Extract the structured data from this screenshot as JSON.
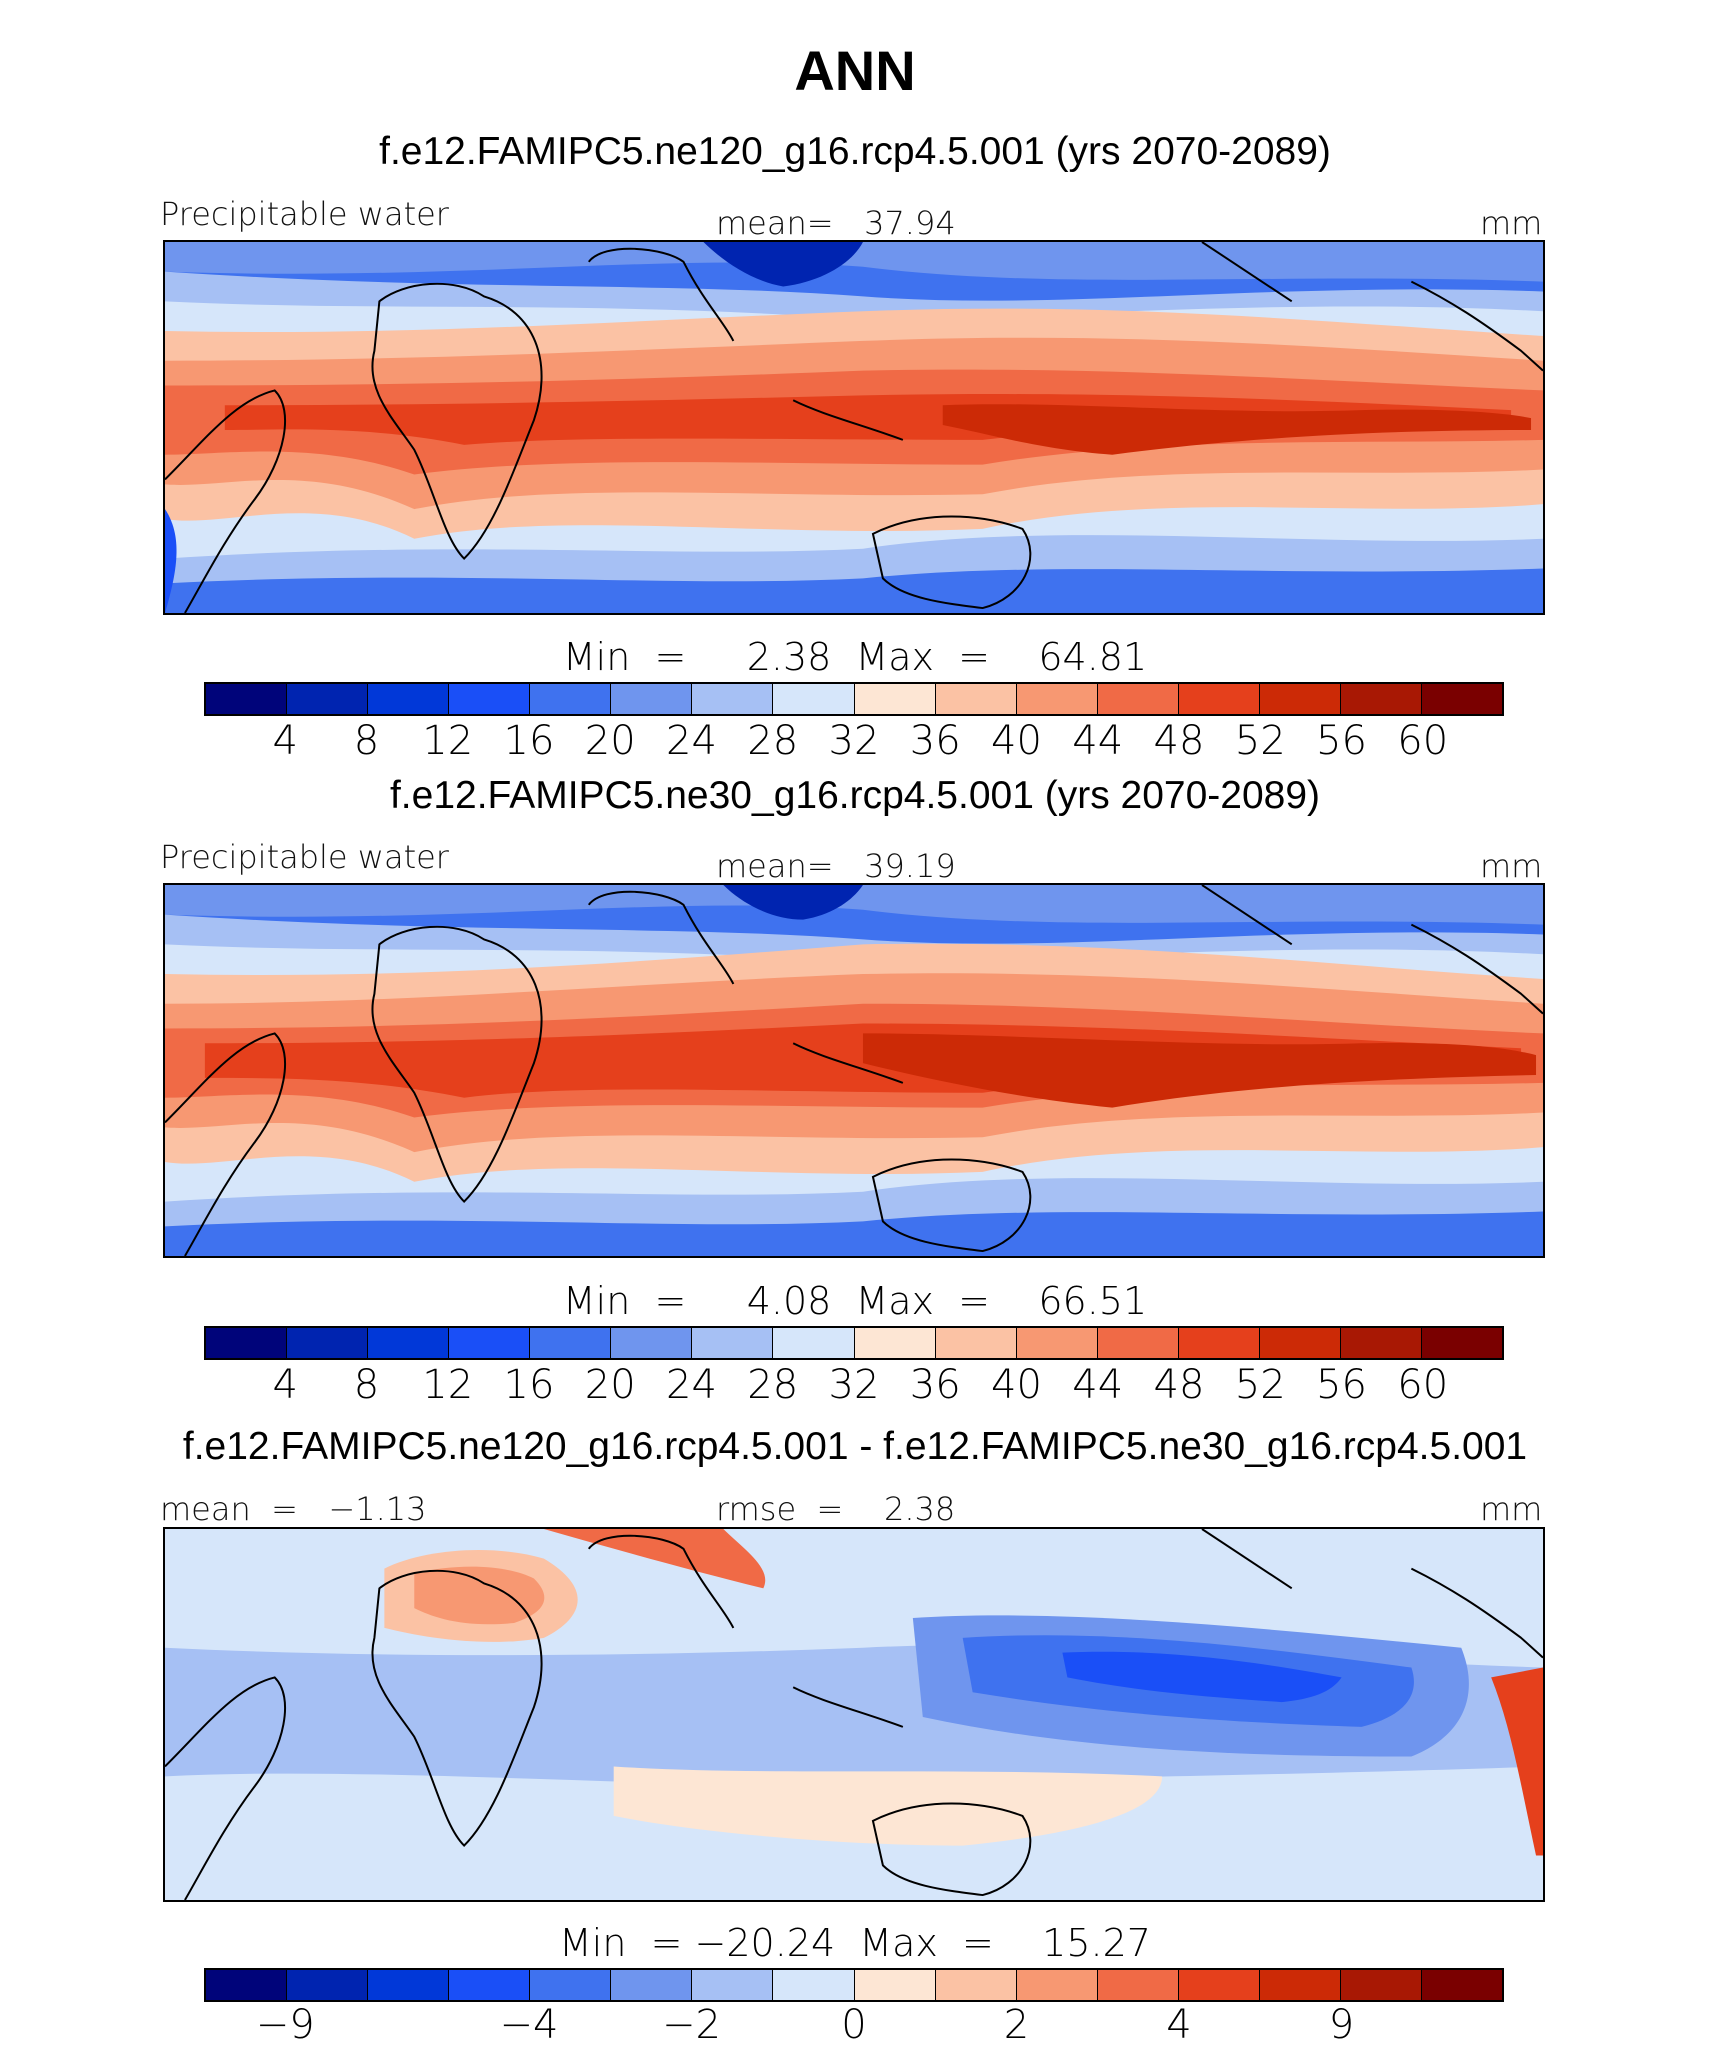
{
  "title": "ANN",
  "colors": {
    "main": [
      "#00047a",
      "#0024b0",
      "#0138d8",
      "#1a4ff7",
      "#3f72ef",
      "#6f95ee",
      "#a6c0f4",
      "#d6e6fa",
      "#fde6d4",
      "#fbc2a4",
      "#f79872",
      "#f06a46",
      "#e5401c",
      "#cc2a06",
      "#a81804",
      "#7a0000"
    ],
    "diff": [
      "#00047a",
      "#0024b0",
      "#0138d8",
      "#1a4ff7",
      "#3f72ef",
      "#6f95ee",
      "#a6c0f4",
      "#d6e6fa",
      "#fde6d4",
      "#fbc2a4",
      "#f79872",
      "#f06a46",
      "#e5401c",
      "#cc2a06",
      "#a81804",
      "#7a0000"
    ]
  },
  "panels": [
    {
      "title": "f.e12.FAMIPC5.ne120_g16.rcp4.5.001 (yrs 2070-2089)",
      "left_label": "Precipitable water",
      "center_label": "mean=   37.94",
      "right_label": "mm",
      "minmax": "Min  =     2.38  Max  =    64.81",
      "ticks": [
        "4",
        "8",
        "12",
        "16",
        "20",
        "24",
        "28",
        "32",
        "36",
        "40",
        "44",
        "48",
        "52",
        "56",
        "60"
      ]
    },
    {
      "title": "f.e12.FAMIPC5.ne30_g16.rcp4.5.001 (yrs 2070-2089)",
      "left_label": "Precipitable water",
      "center_label": "mean=   39.19",
      "right_label": "mm",
      "minmax": "Min  =     4.08  Max  =    66.51",
      "ticks": [
        "4",
        "8",
        "12",
        "16",
        "20",
        "24",
        "28",
        "32",
        "36",
        "40",
        "44",
        "48",
        "52",
        "56",
        "60"
      ]
    },
    {
      "title": "f.e12.FAMIPC5.ne120_g16.rcp4.5.001 - f.e12.FAMIPC5.ne30_g16.rcp4.5.001",
      "left_label": "mean  =   −1.13",
      "center_label": "rmse  =    2.38",
      "right_label": "mm",
      "minmax": "Min  = −20.24  Max  =    15.27",
      "ticks": [
        "−9",
        "−4",
        "−2",
        "0",
        "2",
        "4",
        "9"
      ]
    }
  ]
}
